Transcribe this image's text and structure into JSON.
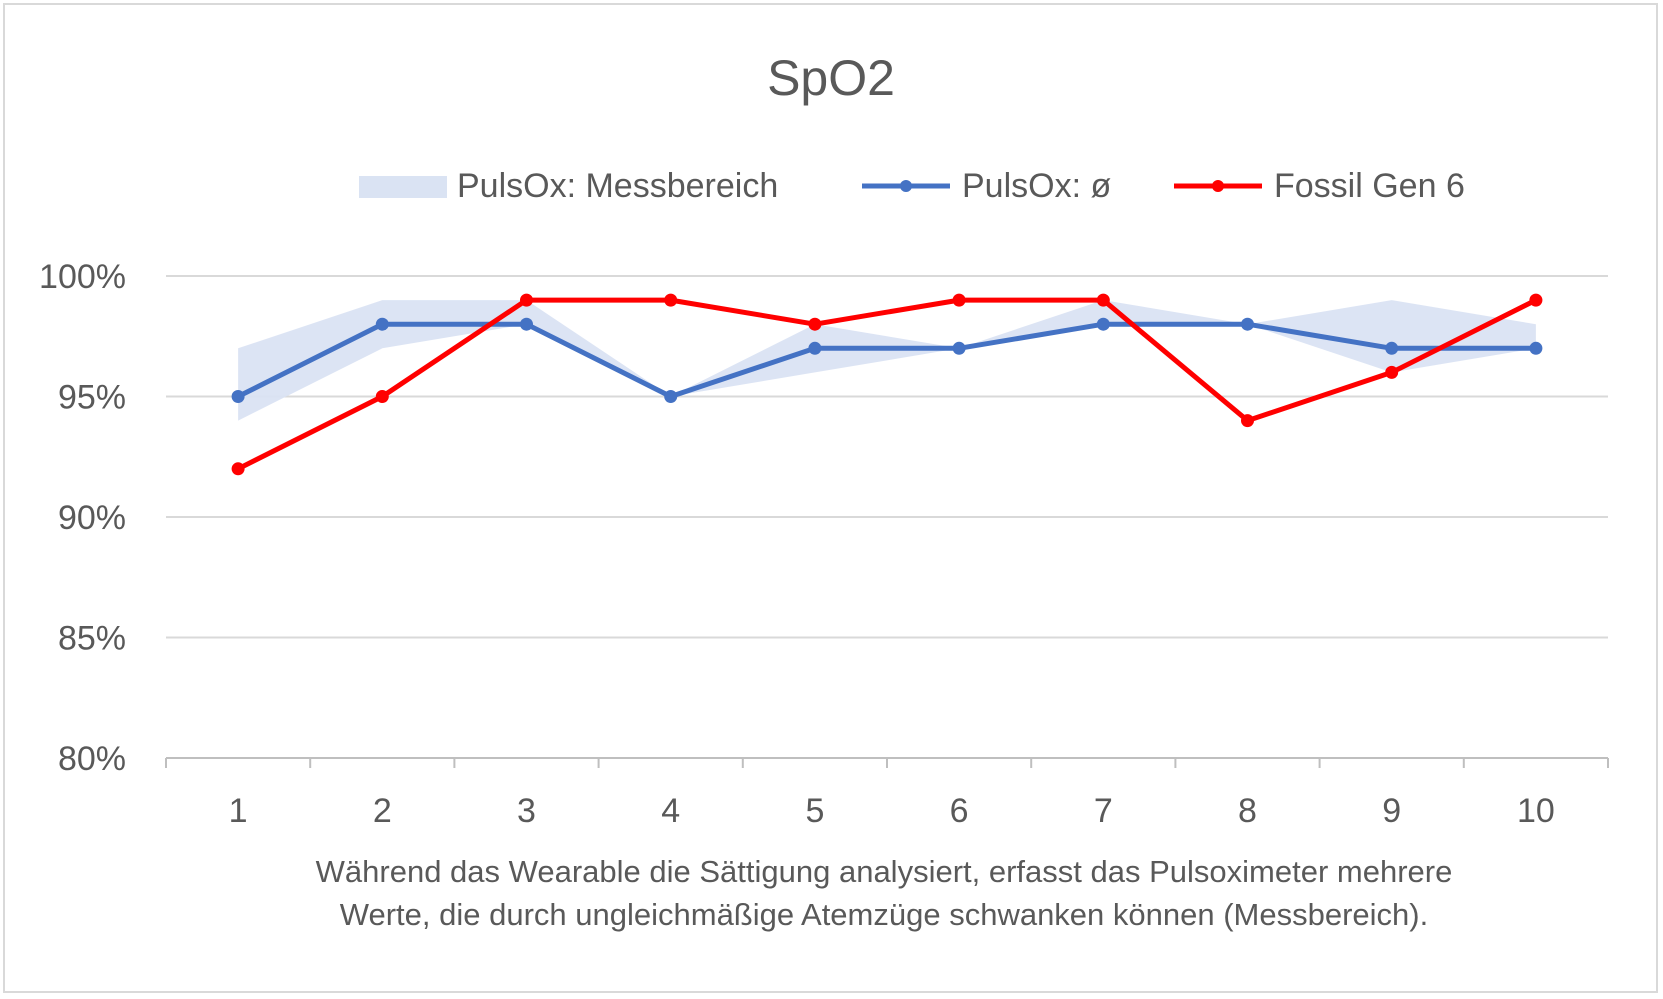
{
  "chart_data": {
    "type": "line",
    "title": "SpO2",
    "xlabel_lines": [
      "Während das Wearable die Sättigung analysiert, erfasst das Pulsoximeter mehrere",
      "Werte, die durch ungleichmäßige Atemzüge schwanken können (Messbereich)."
    ],
    "ylabel": "",
    "categories": [
      "1",
      "2",
      "3",
      "4",
      "5",
      "6",
      "7",
      "8",
      "9",
      "10"
    ],
    "ylim": [
      80,
      100
    ],
    "yticks": [
      80,
      85,
      90,
      95,
      100
    ],
    "ytick_labels": [
      "80%",
      "85%",
      "90%",
      "95%",
      "100%"
    ],
    "grid": "horizontal",
    "legend_position": "top",
    "range_band": {
      "name": "PulsOx: Messbereich",
      "color": "#dae3f3",
      "low": [
        94,
        97,
        98,
        95,
        96,
        97,
        98,
        98,
        96,
        97
      ],
      "high": [
        97,
        99,
        99,
        95,
        98,
        97,
        99,
        98,
        99,
        98
      ]
    },
    "series": [
      {
        "name": "PulsOx: ø",
        "color": "#4472c4",
        "values": [
          95,
          98,
          98,
          95,
          97,
          97,
          98,
          98,
          97,
          97
        ]
      },
      {
        "name": "Fossil Gen 6",
        "color": "#ff0000",
        "values": [
          92,
          95,
          99,
          99,
          98,
          99,
          99,
          94,
          96,
          99
        ]
      }
    ]
  }
}
